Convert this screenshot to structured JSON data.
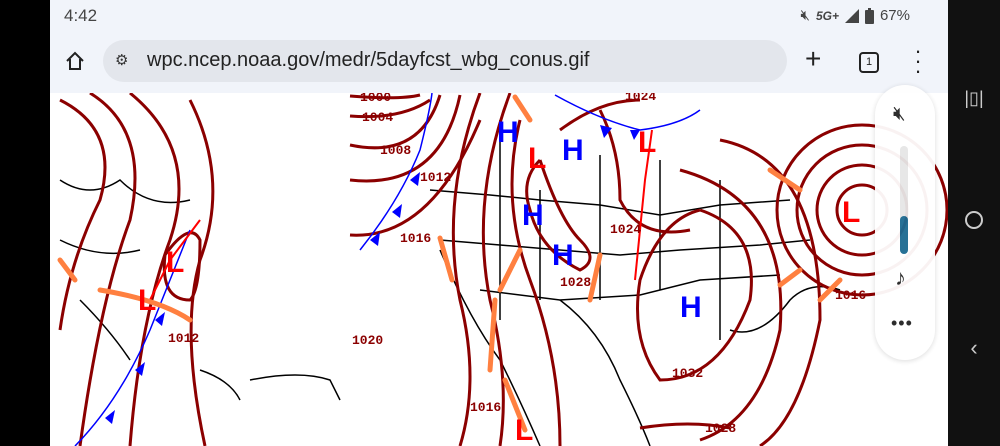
{
  "status_bar": {
    "time": "4:42",
    "network": "5G+",
    "battery": "67%",
    "icons": [
      "mute-icon",
      "signal-icon",
      "battery-icon"
    ]
  },
  "browser": {
    "url": "wpc.ncep.noaa.gov/medr/5dayfcst_wbg_conus.gif",
    "tab_count": "1",
    "icons": [
      "home-icon",
      "site-settings-icon",
      "new-tab-icon",
      "tab-switcher-icon",
      "more-menu-icon"
    ]
  },
  "volume_panel": {
    "level_percent": 35,
    "icons": [
      "mute-icon",
      "music-note-icon",
      "more-icon"
    ]
  },
  "nav_bar": {
    "icons": [
      "recents-icon",
      "home-icon",
      "back-icon"
    ]
  },
  "map": {
    "pressure_labels": [
      "1000",
      "1004",
      "1008",
      "1012",
      "1016",
      "1028",
      "1024",
      "1024",
      "1012",
      "1020",
      "1016",
      "1032",
      "1028",
      "1016"
    ],
    "highs": [
      "H",
      "H",
      "H",
      "H",
      "H"
    ],
    "lows": [
      "L",
      "L",
      "L",
      "L",
      "L",
      "L"
    ],
    "colors": {
      "isobar": "#8b0000",
      "high": "#0000ff",
      "low": "#ff0000",
      "cold_front": "#0000ff",
      "warm_front": "#ff0000",
      "trough": "#ff8040"
    }
  }
}
